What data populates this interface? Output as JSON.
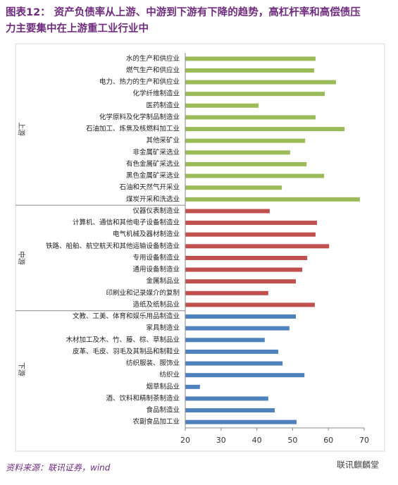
{
  "chart_data": {
    "type": "bar",
    "orientation": "horizontal",
    "title_lines": [
      "图表12：  资产负债率从上游、中游到下游有下降的趋势，高杠杆率和高偿债压",
      "力主要集中在上游重工业行业中"
    ],
    "source": "资料来源：联讯证券，wind",
    "watermark": "联讯麒麟堂",
    "xlim": [
      20,
      70
    ],
    "xticks": [
      20,
      30,
      40,
      50,
      60,
      70
    ],
    "groups": [
      {
        "name": "上游",
        "color": "#9bbb59",
        "categories": [
          "水的生产和供应业",
          "燃气生产和供应业",
          "电力、热力的生产和供应业",
          "化学纤维制造业",
          "医药制造业",
          "化学原料及化学制品制造业",
          "石油加工、炼焦及核燃料加工业",
          "其他采矿业",
          "非金属矿采选业",
          "有色金属矿采选业",
          "黑色金属矿采选业",
          "石油和天然气开采业",
          "煤炭开采和洗选业"
        ],
        "values": [
          56.4,
          56.0,
          62.1,
          59.0,
          40.5,
          56.4,
          64.5,
          53.5,
          49.3,
          53.9,
          58.8,
          47.0,
          68.8
        ]
      },
      {
        "name": "中游",
        "color": "#c0504d",
        "categories": [
          "仪器仪表制造业",
          "计算机、通信和其他电子设备制造业",
          "电气机械及器材制造业",
          "铁路、船舶、航空航天和其他运输设备制造业",
          "专用设备制造业",
          "通用设备制造业",
          "金属制品业",
          "印刷业和记录媒介的复制",
          "造纸及纸制品业"
        ],
        "values": [
          43.6,
          56.8,
          56.4,
          60.2,
          54.1,
          52.7,
          50.9,
          43.2,
          56.2
        ]
      },
      {
        "name": "下游",
        "color": "#4f81bd",
        "categories": [
          "文教、工美、体育和娱乐用品制造业",
          "家具制造业",
          "木材加工及木、竹、藤、棕、草制品业",
          "皮革、毛皮、羽毛及其制品和制鞋业",
          "纺织服装、服饰业",
          "纺织业",
          "烟草制品业",
          "酒、饮料和精制茶制造业",
          "食品制造业",
          "农副食品加工业"
        ],
        "values": [
          50.9,
          49.1,
          42.2,
          46.0,
          47.2,
          53.3,
          24.1,
          43.2,
          45.0,
          51.1
        ]
      }
    ]
  }
}
